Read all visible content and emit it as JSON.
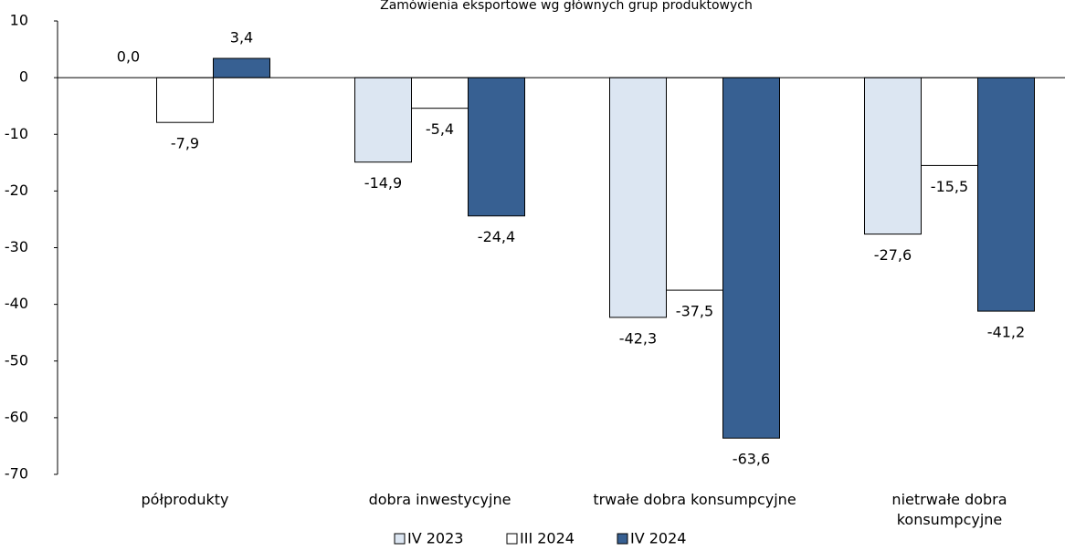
{
  "chart_data": {
    "type": "bar",
    "title": "Zamówienia eksportowe wg głównych grup produktowych",
    "categories": [
      "półprodukty",
      "dobra inwestycyjne",
      "trwałe dobra konsumpcyjne",
      "nietrwałe dobra konsumpcyjne"
    ],
    "series": [
      {
        "name": "IV 2023",
        "color": "#dce6f2",
        "values": [
          0,
          -14.9,
          -42.3,
          -27.6
        ],
        "value_labels": [
          "0,0",
          "-14,9",
          "-42,3",
          "-27,6"
        ]
      },
      {
        "name": "III 2024",
        "color": "#ffffff",
        "values": [
          -7.9,
          -5.4,
          -37.5,
          -15.5
        ],
        "value_labels": [
          "-7,9",
          "-5,4",
          "-37,5",
          "-15,5"
        ]
      },
      {
        "name": "IV 2024",
        "color": "#376092",
        "values": [
          3.4,
          -24.4,
          -63.6,
          -41.2
        ],
        "value_labels": [
          "3,4",
          "-24,4",
          "-63,6",
          "-41,2"
        ]
      }
    ],
    "ylim": [
      -70,
      10
    ],
    "yticks": [
      10,
      0,
      -10,
      -20,
      -30,
      -40,
      -50,
      -60,
      -70
    ],
    "legend": "bottom"
  }
}
